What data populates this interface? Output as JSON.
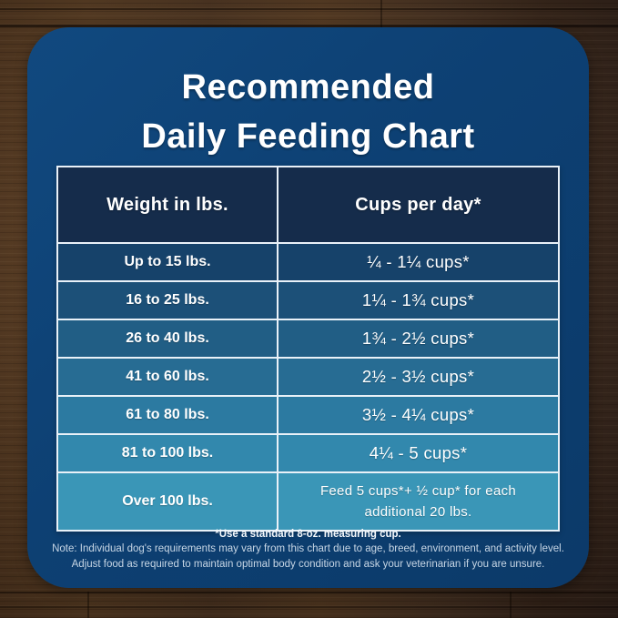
{
  "title": {
    "line1": "Recommended",
    "line2": "Daily Feeding Chart"
  },
  "table": {
    "headers": {
      "weight": "Weight in lbs.",
      "cups": "Cups per day*"
    },
    "rows": [
      {
        "weight": "Up to 15 lbs.",
        "cups": "¼ - 1¼ cups*"
      },
      {
        "weight": "16 to 25 lbs.",
        "cups": "1¼ - 1¾  cups*"
      },
      {
        "weight": "26 to 40 lbs.",
        "cups": "1¾ - 2½ cups*"
      },
      {
        "weight": "41 to 60 lbs.",
        "cups": "2½ - 3½ cups*"
      },
      {
        "weight": "61 to 80 lbs.",
        "cups": "3½ - 4¼ cups*"
      },
      {
        "weight": "81 to 100 lbs.",
        "cups": "4¼ - 5 cups*"
      },
      {
        "weight": "Over 100 lbs.",
        "cups": "Feed 5 cups*+ ½ cup* for each additional 20 lbs."
      }
    ],
    "row_colors": [
      "#16426a",
      "#1c5078",
      "#215e85",
      "#276c93",
      "#2c7aa1",
      "#3288ad",
      "#3a96b7"
    ],
    "header_color": "#152c4b",
    "border_color": "#e9f1f8"
  },
  "footnotes": {
    "measuring_cup": "*Use a standard 8-oz. measuring cup.",
    "note_line1": "Note: Individual dog's requirements may vary from this chart due to age, breed, environment, and activity level.",
    "note_line2": "Adjust food as required to maintain optimal body condition and ask your veterinarian if you are unsure."
  },
  "colors": {
    "card_background": "#0d4073",
    "wood_background": "#452e1c",
    "text": "#ffffff"
  },
  "chart_data": {
    "type": "table",
    "title": "Recommended Daily Feeding Chart",
    "columns": [
      "Weight in lbs.",
      "Cups per day*"
    ],
    "rows": [
      [
        "Up to 15 lbs.",
        "¼ - 1¼ cups*"
      ],
      [
        "16 to 25 lbs.",
        "1¼ - 1¾ cups*"
      ],
      [
        "26 to 40 lbs.",
        "1¾ - 2½ cups*"
      ],
      [
        "41 to 60 lbs.",
        "2½ - 3½ cups*"
      ],
      [
        "61 to 80 lbs.",
        "3½ - 4¼ cups*"
      ],
      [
        "81 to 100 lbs.",
        "4¼ - 5 cups*"
      ],
      [
        "Over 100 lbs.",
        "Feed 5 cups*+ ½ cup* for each additional 20 lbs."
      ]
    ],
    "notes": [
      "*Use a standard 8-oz. measuring cup.",
      "Note: Individual dog's requirements may vary from this chart due to age, breed, environment, and activity level. Adjust food as required to maintain optimal body condition and ask your veterinarian if you are unsure."
    ]
  }
}
